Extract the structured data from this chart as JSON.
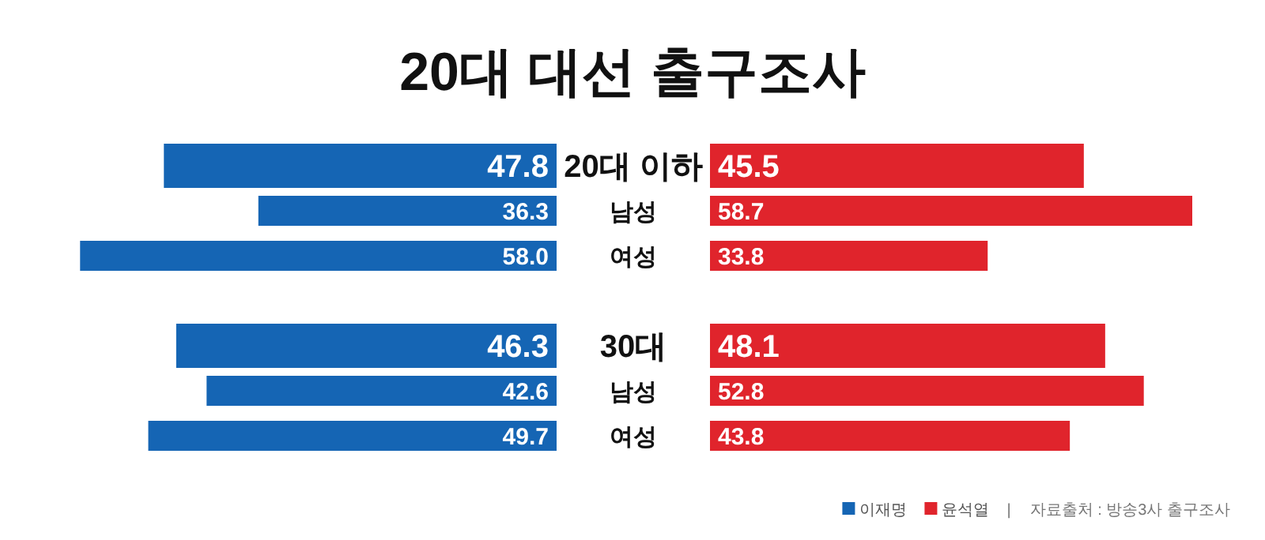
{
  "chart_data": [
    {
      "type": "bar",
      "orientation": "horizontal",
      "title": "20대 대선 출구조사",
      "categories": [
        "20대 이하",
        "남성",
        "여성",
        null,
        "30대",
        "남성",
        "여성"
      ],
      "series": [
        {
          "name": "이재명",
          "color": "#1565b4",
          "values": [
            47.8,
            36.3,
            58.0,
            null,
            46.3,
            42.6,
            49.7
          ],
          "value_labels": [
            "47.8",
            "36.3",
            "58.0",
            null,
            "46.3",
            "42.6",
            "49.7"
          ]
        }
      ],
      "legend": "bottom right"
    },
    {
      "type": "bar",
      "orientation": "horizontal",
      "categories": [
        null,
        null,
        null,
        null,
        null,
        null,
        null
      ],
      "series": [
        {
          "name": "윤석열",
          "color": "#e0242c",
          "values": [
            45.5,
            58.7,
            33.8,
            null,
            48.1,
            52.8,
            43.8
          ],
          "value_labels": [
            "45.5",
            "58.7",
            "33.8",
            null,
            "48.1",
            "52.8",
            "43.8"
          ]
        }
      ],
      "legend": "bottom right",
      "annotations": [
        "|",
        "자료출처 : 방송3사 출구조사"
      ]
    }
  ]
}
